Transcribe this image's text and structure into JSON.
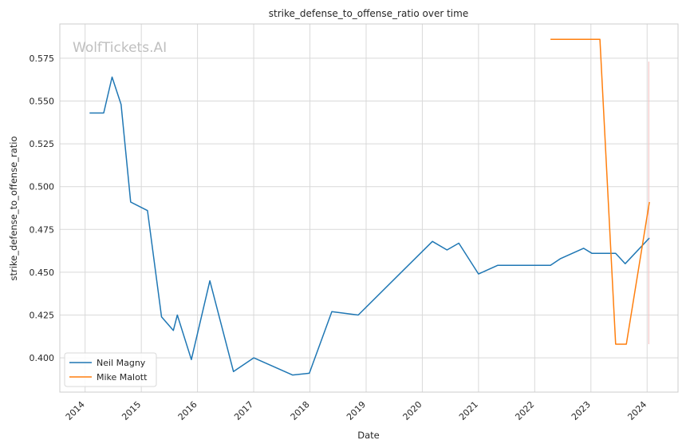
{
  "chart_data": {
    "type": "line",
    "title": "strike_defense_to_offense_ratio over time",
    "xlabel": "Date",
    "ylabel": "strike_defense_to_offense_ratio",
    "watermark": "WolfTickets.AI",
    "xlim": [
      2013.55,
      2024.55
    ],
    "ylim": [
      0.38,
      0.595
    ],
    "x_ticks": [
      2014,
      2015,
      2016,
      2017,
      2018,
      2019,
      2020,
      2021,
      2022,
      2023,
      2024
    ],
    "y_ticks": [
      0.4,
      0.425,
      0.45,
      0.475,
      0.5,
      0.525,
      0.55,
      0.575
    ],
    "grid": true,
    "legend_position": "lower-left",
    "series": [
      {
        "name": "Neil Magny",
        "color": "#1f77b4",
        "x": [
          2014.08,
          2014.33,
          2014.48,
          2014.64,
          2014.81,
          2015.11,
          2015.36,
          2015.57,
          2015.64,
          2015.89,
          2016.22,
          2016.64,
          2017.0,
          2017.69,
          2017.99,
          2018.39,
          2018.86,
          2020.18,
          2020.44,
          2020.65,
          2021.0,
          2021.34,
          2022.28,
          2022.46,
          2022.87,
          2023.02,
          2023.44,
          2023.61,
          2024.04
        ],
        "values": [
          0.543,
          0.543,
          0.564,
          0.548,
          0.491,
          0.486,
          0.424,
          0.416,
          0.425,
          0.399,
          0.445,
          0.392,
          0.4,
          0.39,
          0.391,
          0.427,
          0.425,
          0.468,
          0.463,
          0.467,
          0.449,
          0.454,
          0.454,
          0.458,
          0.464,
          0.461,
          0.461,
          0.455,
          0.47
        ]
      },
      {
        "name": "Mike Malott",
        "color": "#ff7f0e",
        "x": [
          2022.28,
          2023.16,
          2023.44,
          2023.63,
          2024.04
        ],
        "values": [
          0.586,
          0.586,
          0.408,
          0.408,
          0.491
        ]
      }
    ],
    "error_band": {
      "x": 2024.03,
      "ymin": 0.408,
      "ymax": 0.573,
      "color": "#f4c6c6"
    }
  }
}
